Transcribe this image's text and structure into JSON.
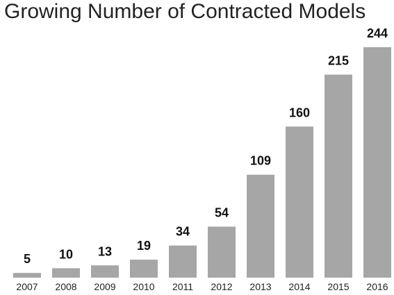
{
  "chart_data": {
    "type": "bar",
    "title": "Growing Number of Contracted Models",
    "xlabel": "",
    "ylabel": "",
    "categories": [
      "2007",
      "2008",
      "2009",
      "2010",
      "2011",
      "2012",
      "2013",
      "2014",
      "2015",
      "2016"
    ],
    "values": [
      5,
      10,
      13,
      19,
      34,
      54,
      109,
      160,
      215,
      244
    ],
    "ylim": [
      0,
      244
    ],
    "bar_color": "#a6a6a6",
    "data_labels": true,
    "grid": false,
    "legend": "none"
  }
}
